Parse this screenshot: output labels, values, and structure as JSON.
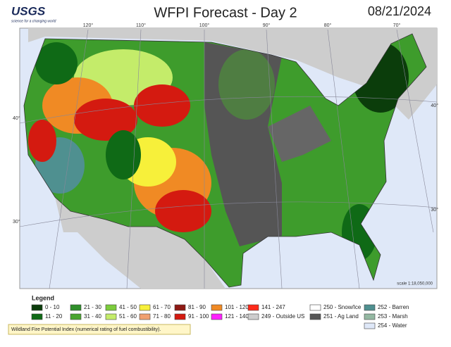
{
  "header": {
    "logo": "USGS",
    "tagline": "science for a changing world",
    "title": "WFPI Forecast - Day 2",
    "date": "08/21/2024"
  },
  "map": {
    "longitude_labels": [
      "120°",
      "110°",
      "100°",
      "90°",
      "80°",
      "70°"
    ],
    "latitude_labels": [
      {
        "label": "40°",
        "side": "left"
      },
      {
        "label": "30°",
        "side": "left"
      },
      {
        "label": "40°",
        "side": "right"
      },
      {
        "label": "30°",
        "side": "right"
      }
    ],
    "scale": "scale 1:18,050,000"
  },
  "legend": {
    "title": "Legend",
    "items": [
      {
        "label": "0 - 10",
        "color": "#0b3d0b"
      },
      {
        "label": "11 - 20",
        "color": "#0f6a16"
      },
      {
        "label": "21 - 30",
        "color": "#2f8f2a"
      },
      {
        "label": "31 - 40",
        "color": "#4aa52f"
      },
      {
        "label": "41 - 50",
        "color": "#7ccc3c"
      },
      {
        "label": "51 - 60",
        "color": "#c4ec6a"
      },
      {
        "label": "61 - 70",
        "color": "#f7f03a"
      },
      {
        "label": "71 - 80",
        "color": "#f0a070"
      },
      {
        "label": "81 - 90",
        "color": "#8e1a14"
      },
      {
        "label": "91 - 100",
        "color": "#d41a10"
      },
      {
        "label": "101 - 120",
        "color": "#f08a24"
      },
      {
        "label": "121 - 140",
        "color": "#ff20ff"
      },
      {
        "label": "141 - 247",
        "color": "#ff2a1a"
      },
      {
        "label": "249 - Outside US",
        "color": "#cdcdcd"
      },
      {
        "label": "250 - Snow/Ice",
        "color": "#ffffff"
      },
      {
        "label": "251 - Ag Land",
        "color": "#555555"
      },
      {
        "label": "252 - Barren",
        "color": "#4f9090"
      },
      {
        "label": "253 - Marsh",
        "color": "#94b8a2"
      },
      {
        "label": "254 - Water",
        "color": "#dfe8f8"
      }
    ],
    "note": "Wildland Fire Potential Index (numerical rating of fuel combustibility)."
  }
}
